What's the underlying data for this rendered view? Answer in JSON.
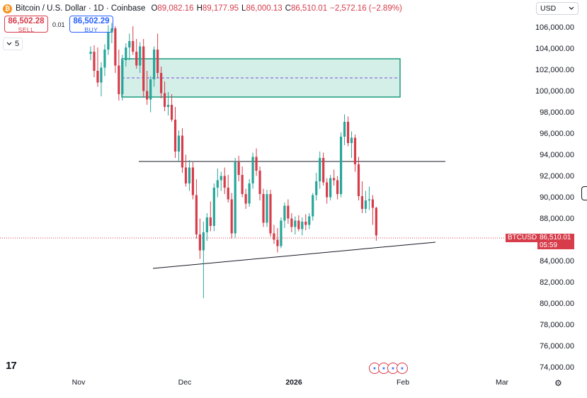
{
  "header": {
    "coin_icon": "bitcoin-icon",
    "symbol": "Bitcoin / U.S. Dollar · 1D · Coinbase",
    "open_label": "O",
    "open": "89,082.16",
    "high_label": "H",
    "high": "89,177.95",
    "low_label": "L",
    "low": "86,000.13",
    "close_label": "C",
    "close": "86,510.01",
    "change": "−2,572.16 (−2.89%)"
  },
  "trade": {
    "sell_price": "86,502.28",
    "sell_label": "SELL",
    "spread": "0.01",
    "buy_price": "86,502.29",
    "buy_label": "BUY"
  },
  "indicators": {
    "count": "5",
    "toggle_icon": "chevron-down-icon"
  },
  "currency": {
    "value": "USD",
    "icon": "chevron-down-icon"
  },
  "price_axis": {
    "labels": [
      "106,000.00",
      "104,000.00",
      "102,000.00",
      "100,000.00",
      "98,000.00",
      "96,000.00",
      "94,000.00",
      "92,000.00",
      "90,000.00",
      "88,000.00",
      "84,000.00",
      "82,000.00",
      "80,000.00",
      "78,000.00",
      "76,000.00",
      "74,000.00"
    ],
    "current_symbol": "BTCUSD",
    "current_price": "86,510.01",
    "countdown": "05:59"
  },
  "time_axis": {
    "labels": [
      {
        "text": "Nov",
        "bold": false
      },
      {
        "text": "Dec",
        "bold": false
      },
      {
        "text": "2026",
        "bold": true
      },
      {
        "text": "Feb",
        "bold": false
      },
      {
        "text": "Mar",
        "bold": false
      }
    ]
  },
  "colors": {
    "up": "#26a69a",
    "down": "#d63c4a",
    "zone_fill": "#d4eee8",
    "zone_border": "#1b9b7d",
    "zone_mid": "#7b4fd6"
  },
  "chart_data": {
    "type": "candlestick",
    "interval": "1D",
    "ylim": [
      73500,
      108500
    ],
    "ohlc": [
      [
        103600,
        104300,
        103000,
        103800
      ],
      [
        103800,
        104400,
        101400,
        102000
      ],
      [
        102000,
        104200,
        100500,
        100900
      ],
      [
        100900,
        102800,
        99600,
        102300
      ],
      [
        102300,
        104500,
        101500,
        104000
      ],
      [
        104000,
        106300,
        103500,
        105600
      ],
      [
        105600,
        106500,
        104600,
        106000
      ],
      [
        106000,
        106200,
        101800,
        102500
      ],
      [
        102500,
        104000,
        99200,
        99800
      ],
      [
        99800,
        103500,
        99200,
        103000
      ],
      [
        103000,
        104600,
        102400,
        104200
      ],
      [
        104200,
        105500,
        103000,
        104800
      ],
      [
        104800,
        106200,
        103500,
        103800
      ],
      [
        103800,
        105000,
        102200,
        102500
      ],
      [
        102500,
        104700,
        101800,
        104300
      ],
      [
        104300,
        105000,
        99500,
        100100
      ],
      [
        100100,
        102000,
        98800,
        99300
      ],
      [
        99300,
        101500,
        98100,
        101200
      ],
      [
        101200,
        104300,
        100500,
        104000
      ],
      [
        104000,
        105500,
        101300,
        101800
      ],
      [
        101800,
        102400,
        99400,
        99900
      ],
      [
        99900,
        101000,
        98200,
        98600
      ],
      [
        98600,
        100000,
        97800,
        98800
      ],
      [
        98800,
        99800,
        97200,
        97400
      ],
      [
        97400,
        98600,
        93800,
        94400
      ],
      [
        94400,
        96400,
        93400,
        95900
      ],
      [
        95900,
        96600,
        92400,
        92900
      ],
      [
        92900,
        94100,
        91100,
        91400
      ],
      [
        91400,
        93600,
        90700,
        92900
      ],
      [
        92900,
        93400,
        89900,
        90300
      ],
      [
        90300,
        91800,
        86200,
        86600
      ],
      [
        86600,
        88100,
        84300,
        85100
      ],
      [
        85100,
        87800,
        80600,
        86800
      ],
      [
        86800,
        88600,
        86000,
        88200
      ],
      [
        88200,
        89700,
        86900,
        87400
      ],
      [
        87400,
        91400,
        86900,
        91000
      ],
      [
        91000,
        92800,
        90100,
        91700
      ],
      [
        91700,
        92500,
        90700,
        92100
      ],
      [
        92100,
        92900,
        90400,
        91000
      ],
      [
        91000,
        92200,
        89600,
        89900
      ],
      [
        89900,
        90500,
        86200,
        86700
      ],
      [
        86700,
        93800,
        86300,
        93400
      ],
      [
        93400,
        94000,
        91600,
        92200
      ],
      [
        92200,
        93000,
        90100,
        90400
      ],
      [
        90400,
        90900,
        89000,
        89500
      ],
      [
        89500,
        91800,
        89200,
        91400
      ],
      [
        91400,
        94300,
        90900,
        93900
      ],
      [
        93900,
        94700,
        92100,
        92600
      ],
      [
        92600,
        93000,
        89800,
        90400
      ],
      [
        90400,
        90900,
        87300,
        87700
      ],
      [
        87700,
        90800,
        87300,
        90400
      ],
      [
        90400,
        90800,
        86400,
        86700
      ],
      [
        86700,
        87500,
        85700,
        86100
      ],
      [
        86100,
        87200,
        84900,
        85500
      ],
      [
        85500,
        88200,
        85300,
        87900
      ],
      [
        87900,
        89600,
        87200,
        89300
      ],
      [
        89300,
        89900,
        87600,
        88100
      ],
      [
        88100,
        88600,
        86800,
        87300
      ],
      [
        87300,
        88300,
        86600,
        87900
      ],
      [
        87900,
        88400,
        86900,
        87100
      ],
      [
        87100,
        88200,
        86500,
        87800
      ],
      [
        87800,
        88500,
        87000,
        87500
      ],
      [
        87500,
        88600,
        87100,
        88300
      ],
      [
        88300,
        90500,
        87900,
        90300
      ],
      [
        90300,
        92400,
        89800,
        91600
      ],
      [
        91600,
        94400,
        90900,
        93800
      ],
      [
        93800,
        94300,
        91200,
        91500
      ],
      [
        91500,
        91900,
        89500,
        90100
      ],
      [
        90100,
        92200,
        89800,
        91900
      ],
      [
        91900,
        92700,
        91200,
        91700
      ],
      [
        91700,
        92100,
        89900,
        90400
      ],
      [
        90400,
        96200,
        90100,
        95800
      ],
      [
        95800,
        97900,
        95000,
        97200
      ],
      [
        97200,
        97700,
        94900,
        95200
      ],
      [
        95200,
        96300,
        93800,
        95700
      ],
      [
        95700,
        96000,
        92500,
        93200
      ],
      [
        93200,
        93900,
        89800,
        90200
      ],
      [
        90200,
        91600,
        88600,
        89000
      ],
      [
        89000,
        90700,
        88600,
        89800
      ],
      [
        89800,
        91100,
        88900,
        89900
      ],
      [
        89900,
        90300,
        87500,
        89100
      ],
      [
        89100,
        89200,
        86000,
        86510
      ]
    ],
    "demand_zone": {
      "low": 99800,
      "high": 103500,
      "mid": 101650
    },
    "resistance_level": 93800,
    "support_trendline": {
      "from_price": 83500,
      "to_price": 86100
    },
    "current_price_line": 86510
  }
}
